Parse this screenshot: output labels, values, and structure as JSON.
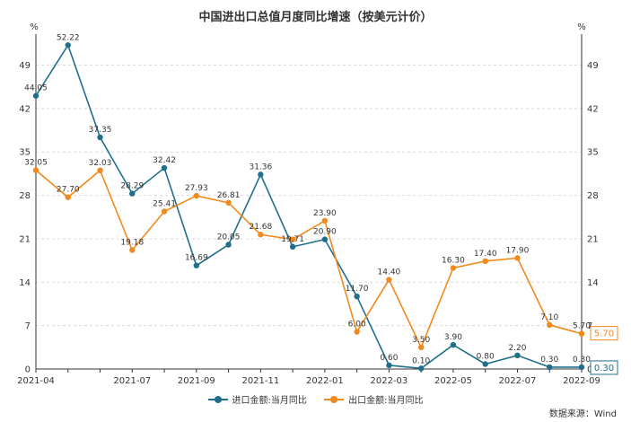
{
  "title": "中国进出口总值月度同比增速（按美元计价）",
  "source": "数据来源：Wind",
  "colors": {
    "import": "#1f6f8b",
    "export": "#f08a1c",
    "axis": "#333333",
    "grid": "#d9d9d9"
  },
  "chart_data": {
    "type": "line",
    "title": "中国进出口总值月度同比增速（按美元计价）",
    "y_unit_left": "%",
    "y_unit_right": "%",
    "ylim": [
      0,
      54
    ],
    "yticks": [
      0,
      7,
      14,
      21,
      28,
      35,
      42,
      49
    ],
    "grid": "horizontal",
    "legend_position": "bottom",
    "categories": [
      "2021-04",
      "2021-05",
      "2021-06",
      "2021-07",
      "2021-08",
      "2021-09",
      "2021-10",
      "2021-11",
      "2021-12",
      "2022-01",
      "2022-02",
      "2022-03",
      "2022-04",
      "2022-05",
      "2022-06",
      "2022-07",
      "2022-08",
      "2022-09"
    ],
    "xtick_labels": [
      "2021-04",
      "2021-07",
      "2021-09",
      "2021-11",
      "2022-01",
      "2022-03",
      "2022-05",
      "2022-07",
      "2022-09"
    ],
    "series": [
      {
        "name": "进口金额:当月同比",
        "color": "#1f6f8b",
        "values": [
          44.05,
          52.22,
          37.35,
          28.29,
          32.42,
          16.69,
          20.05,
          31.36,
          19.71,
          20.9,
          11.7,
          0.6,
          0.1,
          3.9,
          0.8,
          2.2,
          0.3,
          0.3
        ],
        "labels": [
          "44.05",
          "52.22",
          "37.35",
          "28.29",
          "32.42",
          "16.69",
          "20.05",
          "31.36",
          "19.71",
          "20.90",
          "11.70",
          "0.60",
          "0.10",
          "3.90",
          "0.80",
          "2.20",
          "0.30",
          "0.30"
        ],
        "end_label": "0.30"
      },
      {
        "name": "出口金额:当月同比",
        "color": "#f08a1c",
        "values": [
          32.05,
          27.7,
          32.03,
          19.18,
          25.41,
          27.93,
          26.81,
          21.68,
          20.9,
          23.9,
          6.0,
          14.4,
          3.5,
          16.3,
          17.4,
          17.9,
          7.1,
          5.7
        ],
        "labels": [
          "32.05",
          "27.70",
          "32.03",
          "19.18",
          "25.41",
          "27.93",
          "26.81",
          "21.68",
          "",
          "23.90",
          "6.00",
          "14.40",
          "3.50",
          "16.30",
          "17.40",
          "17.90",
          "7.10",
          "5.70"
        ],
        "end_label": "5.70"
      }
    ]
  }
}
